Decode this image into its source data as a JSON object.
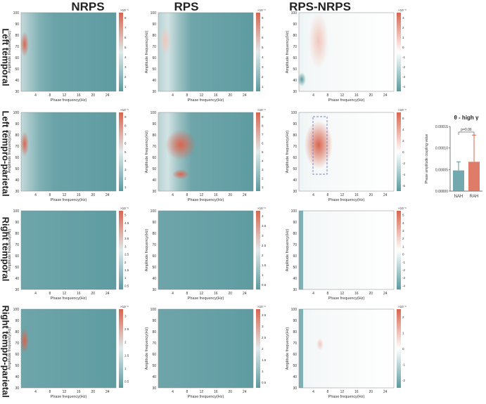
{
  "columns": [
    "NRPS",
    "RPS",
    "RPS-NRPS"
  ],
  "rows": [
    "Left temporal",
    "Left tempro-parietal",
    "Right temporal",
    "Right tempro-parietal"
  ],
  "axes": {
    "xlabel": "Phase frequency(Hz)",
    "ylabel": "Amplitude frequency(Hz)",
    "xticks": [
      "4",
      "8",
      "12",
      "16",
      "20",
      "24"
    ],
    "yticks": [
      "30",
      "40",
      "50",
      "60",
      "70",
      "80",
      "90",
      "100"
    ]
  },
  "colors": {
    "teal": "#5b9aa0",
    "red": "#d9654f",
    "white": "#ffffff"
  },
  "colorbars": [
    {
      "exp": "×10⁻⁵",
      "ticks": [
        "1",
        "2",
        "3",
        "4",
        "5",
        "6",
        "7",
        "8"
      ]
    },
    {
      "exp": "×10⁻⁵",
      "ticks": [
        "1",
        "2",
        "3",
        "4",
        "5",
        "6",
        "7",
        "8"
      ]
    },
    {
      "exp": "×10⁻⁵",
      "ticks": [
        "-4",
        "-3",
        "-2",
        "-1",
        "0",
        "1",
        "2",
        "3"
      ]
    },
    {
      "exp": "×10⁻⁵",
      "ticks": [
        "1",
        "2",
        "3",
        "4",
        "5",
        "6",
        "7",
        "8",
        "9"
      ]
    },
    {
      "exp": "×10⁻⁵",
      "ticks": [
        "1",
        "2",
        "3",
        "4",
        "5",
        "6",
        "7",
        "8",
        "9"
      ]
    },
    {
      "exp": "×10⁻⁵",
      "ticks": [
        "-6",
        "-4",
        "-2",
        "0",
        "2",
        "4",
        "6"
      ]
    },
    {
      "exp": "×10⁻⁶",
      "ticks": [
        "0.5",
        "1",
        "1.5",
        "2",
        "2.5",
        "3",
        "3.5",
        "4",
        "4.5",
        "5"
      ]
    },
    {
      "exp": "×10⁻⁶",
      "ticks": [
        "0.5",
        "1",
        "1.5",
        "2",
        "2.5",
        "3",
        "3.5",
        "4"
      ]
    },
    {
      "exp": "×10⁻⁶",
      "ticks": [
        "-4",
        "-3",
        "-2",
        "-1",
        "0",
        "1",
        "2",
        "3",
        "4",
        "5"
      ]
    },
    {
      "exp": "×10⁻⁶",
      "ticks": [
        "0.5",
        "1",
        "1.5",
        "2",
        "2.5",
        "3"
      ]
    },
    {
      "exp": "×10⁻⁶",
      "ticks": [
        "0.5",
        "1",
        "1.5",
        "2",
        "2.5",
        "3",
        "3.5"
      ]
    },
    {
      "exp": "×10⁻⁶",
      "ticks": [
        "-2",
        "-1",
        "0",
        "1",
        "2"
      ]
    }
  ],
  "chart_data": {
    "type": "bar",
    "title": "θ - high γ",
    "categories": [
      "NAH",
      "RAH"
    ],
    "values": [
      4.8e-05,
      6.8e-05
    ],
    "errors": [
      2e-05,
      6.2e-05
    ],
    "ylabel": "Phase amplitude coupling value",
    "ylim": [
      0,
      0.00015
    ],
    "yticks": [
      "0.00000",
      "0.00005",
      "0.00010",
      "0.00015"
    ],
    "annotation": "p=0.06",
    "colors": [
      "#5b9aa0",
      "#d9654f"
    ]
  }
}
